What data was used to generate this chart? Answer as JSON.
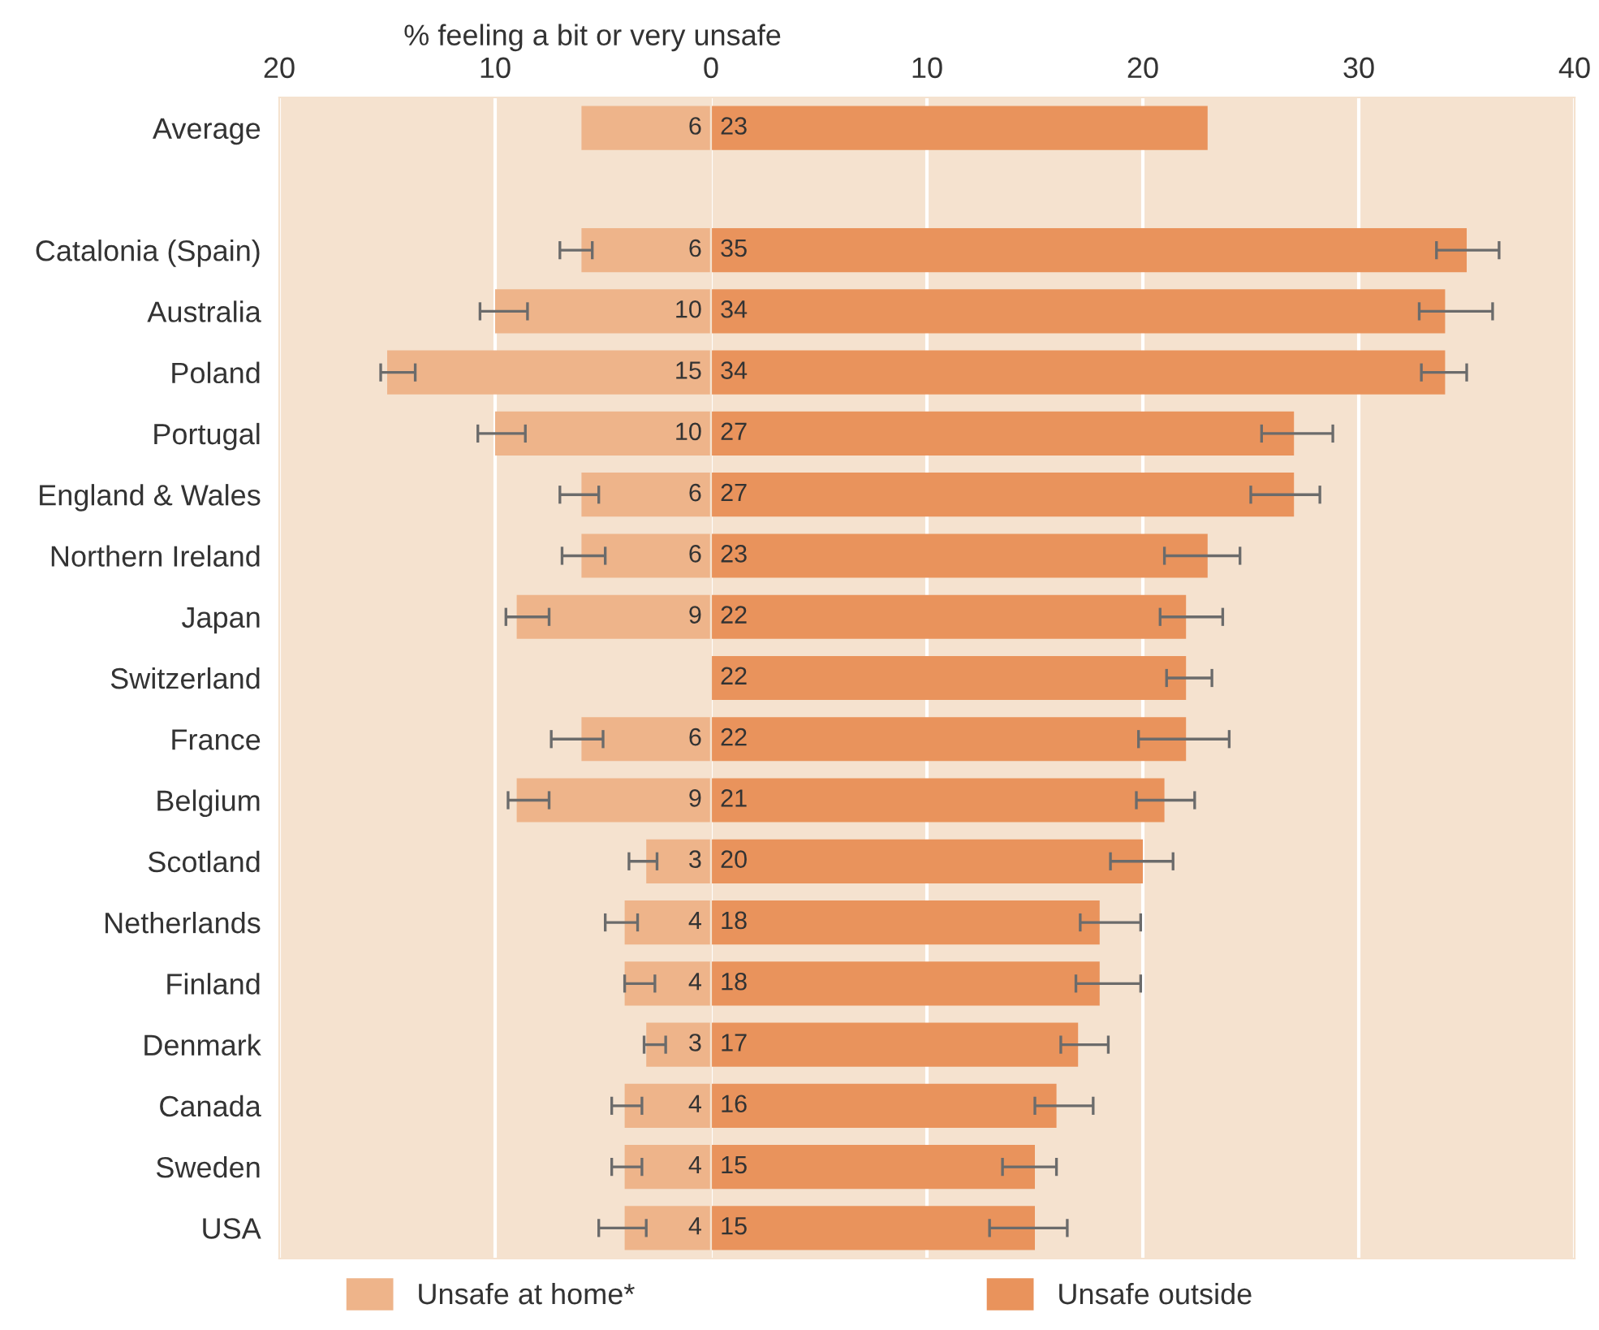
{
  "chart_data": [
    {
      "type": "bar",
      "orientation": "horizontal",
      "xlabel": "% feeling a bit or very unsafe",
      "categories": [
        "Average",
        null,
        "Catalonia (Spain)",
        "Australia",
        "Poland",
        "Portugal",
        "England & Wales",
        "Northern Ireland",
        "Japan",
        "Switzerland",
        "France",
        "Belgium",
        "Scotland",
        "Netherlands",
        "Finland",
        "Denmark",
        "Canada",
        "Sweden",
        "USA"
      ],
      "series": [
        {
          "name": "Unsafe at home*",
          "color": "#eeb48a",
          "values": [
            6,
            null,
            6,
            10,
            15,
            10,
            6,
            6,
            9,
            null,
            6,
            9,
            3,
            4,
            4,
            3,
            4,
            4,
            4
          ],
          "errors": [
            null,
            null,
            [
              5.5,
              7.0
            ],
            [
              8.5,
              10.7
            ],
            [
              13.7,
              15.3
            ],
            [
              8.6,
              10.8
            ],
            [
              5.2,
              7.0
            ],
            [
              4.9,
              6.9
            ],
            [
              7.5,
              9.5
            ],
            null,
            [
              5.0,
              7.4
            ],
            [
              7.5,
              9.4
            ],
            [
              2.5,
              3.8
            ],
            [
              3.4,
              4.9
            ],
            [
              2.6,
              4.0
            ],
            [
              2.1,
              3.1
            ],
            [
              3.2,
              4.6
            ],
            [
              3.2,
              4.6
            ],
            [
              3.0,
              5.2
            ]
          ]
        }
      ],
      "xlim": [
        20,
        0
      ],
      "xticks": [
        20,
        10
      ],
      "grid": "x",
      "data_labels": true,
      "legend": "bottom"
    },
    {
      "type": "bar",
      "orientation": "horizontal",
      "series": [
        {
          "name": "Unsafe outside",
          "color": "#e9935c",
          "values": [
            23,
            null,
            35,
            34,
            34,
            27,
            27,
            23,
            22,
            22,
            22,
            21,
            20,
            18,
            18,
            17,
            16,
            15,
            15
          ],
          "errors": [
            null,
            null,
            [
              33.6,
              36.5
            ],
            [
              32.8,
              36.2
            ],
            [
              32.9,
              35.0
            ],
            [
              25.5,
              28.8
            ],
            [
              25.0,
              28.2
            ],
            [
              21.0,
              24.5
            ],
            [
              20.8,
              23.7
            ],
            [
              21.1,
              23.2
            ],
            [
              19.8,
              24.0
            ],
            [
              19.7,
              22.4
            ],
            [
              18.5,
              21.4
            ],
            [
              17.1,
              19.9
            ],
            [
              16.9,
              19.9
            ],
            [
              16.2,
              18.4
            ],
            [
              15.0,
              17.7
            ],
            [
              13.5,
              16.0
            ],
            [
              12.9,
              16.5
            ]
          ]
        }
      ],
      "xlim": [
        0,
        40
      ],
      "xticks": [
        0,
        10,
        20,
        30,
        40
      ],
      "grid": "x",
      "data_labels": true,
      "legend": "bottom",
      "tick_labels": "x"
    }
  ]
}
